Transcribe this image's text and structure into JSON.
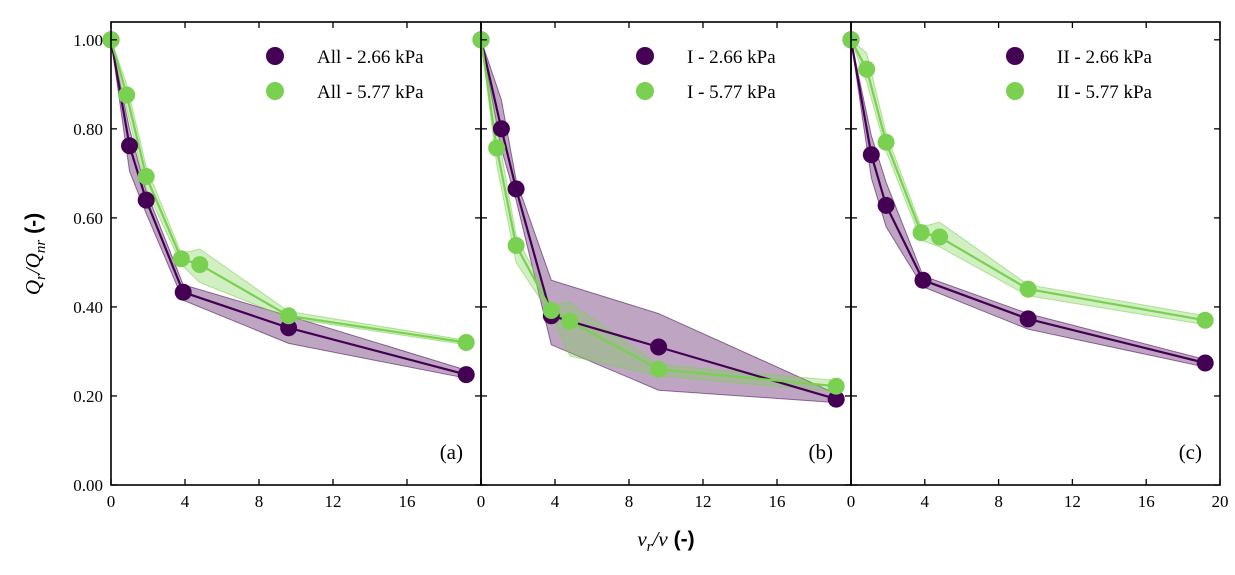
{
  "chart_data": {
    "type": "line",
    "colors": {
      "low": "#440154",
      "high": "#7ad151"
    },
    "xlabel": {
      "math": "v",
      "sub": "r",
      "mid": "/v",
      "unit": "(-)"
    },
    "ylabel": {
      "math": "Q",
      "sub": "r",
      "mid": "/Q",
      "sub2": "nr",
      "unit": "(-)"
    },
    "xlim": [
      0,
      20
    ],
    "ylim": [
      0,
      1.04
    ],
    "xticks": [
      0,
      4,
      8,
      12,
      16,
      20
    ],
    "yticks": [
      0.0,
      0.2,
      0.4,
      0.6,
      0.8,
      1.0
    ],
    "ytick_labels": [
      "0.00",
      "0.20",
      "0.40",
      "0.60",
      "0.80",
      "1.00"
    ],
    "panels": [
      {
        "tag": "(a)",
        "xtick_labels": [
          "0",
          "4",
          "8",
          "12",
          "16",
          ""
        ],
        "series": [
          {
            "name": "All - 2.66 kPa",
            "color_key": "low",
            "x": [
              0,
              1,
              1.9,
              3.9,
              9.6,
              19.2
            ],
            "y": [
              1.0,
              0.762,
              0.64,
              0.433,
              0.353,
              0.248
            ],
            "lower": [
              1.0,
              0.705,
              0.61,
              0.415,
              0.318,
              0.24
            ],
            "upper": [
              1.0,
              0.8,
              0.66,
              0.45,
              0.38,
              0.258
            ]
          },
          {
            "name": "All - 5.77 kPa",
            "color_key": "high",
            "x": [
              0,
              0.85,
              1.9,
              3.8,
              4.8,
              9.6,
              19.2
            ],
            "y": [
              1.0,
              0.876,
              0.693,
              0.508,
              0.495,
              0.38,
              0.32
            ],
            "lower": [
              1.0,
              0.845,
              0.665,
              0.495,
              0.455,
              0.375,
              0.315
            ],
            "upper": [
              1.0,
              0.9,
              0.715,
              0.52,
              0.53,
              0.39,
              0.325
            ]
          }
        ]
      },
      {
        "tag": "(b)",
        "xtick_labels": [
          "0",
          "4",
          "8",
          "12",
          "16",
          ""
        ],
        "series": [
          {
            "name": "I - 2.66 kPa",
            "color_key": "low",
            "x": [
              0,
              1.1,
              1.9,
              3.8,
              9.6,
              19.2
            ],
            "y": [
              1.0,
              0.8,
              0.665,
              0.38,
              0.31,
              0.193
            ],
            "lower": [
              1.0,
              0.755,
              0.64,
              0.315,
              0.213,
              0.185
            ],
            "upper": [
              1.0,
              0.865,
              0.685,
              0.46,
              0.385,
              0.205
            ]
          },
          {
            "name": "I - 5.77 kPa",
            "color_key": "high",
            "x": [
              0,
              0.85,
              1.9,
              3.8,
              4.8,
              9.6,
              19.2
            ],
            "y": [
              1.0,
              0.757,
              0.538,
              0.392,
              0.368,
              0.26,
              0.222
            ],
            "lower": [
              1.0,
              0.72,
              0.5,
              0.38,
              0.29,
              0.245,
              0.21
            ],
            "upper": [
              1.0,
              0.805,
              0.56,
              0.405,
              0.41,
              0.27,
              0.235
            ]
          }
        ]
      },
      {
        "tag": "(c)",
        "xtick_labels": [
          "0",
          "4",
          "8",
          "12",
          "16",
          "20"
        ],
        "series": [
          {
            "name": "II - 2.66 kPa",
            "color_key": "low",
            "x": [
              0,
              1.1,
              1.9,
              3.9,
              9.6,
              19.2
            ],
            "y": [
              1.0,
              0.742,
              0.628,
              0.46,
              0.373,
              0.274
            ],
            "lower": [
              1.0,
              0.69,
              0.58,
              0.445,
              0.35,
              0.265
            ],
            "upper": [
              1.0,
              0.785,
              0.68,
              0.47,
              0.385,
              0.282
            ]
          },
          {
            "name": "II - 5.77 kPa",
            "color_key": "high",
            "x": [
              0,
              0.85,
              1.9,
              3.8,
              4.8,
              9.6,
              19.2
            ],
            "y": [
              1.0,
              0.934,
              0.77,
              0.567,
              0.557,
              0.44,
              0.37
            ],
            "lower": [
              1.0,
              0.905,
              0.75,
              0.55,
              0.535,
              0.425,
              0.36
            ],
            "upper": [
              1.0,
              0.97,
              0.79,
              0.58,
              0.59,
              0.45,
              0.38
            ]
          }
        ]
      }
    ]
  }
}
